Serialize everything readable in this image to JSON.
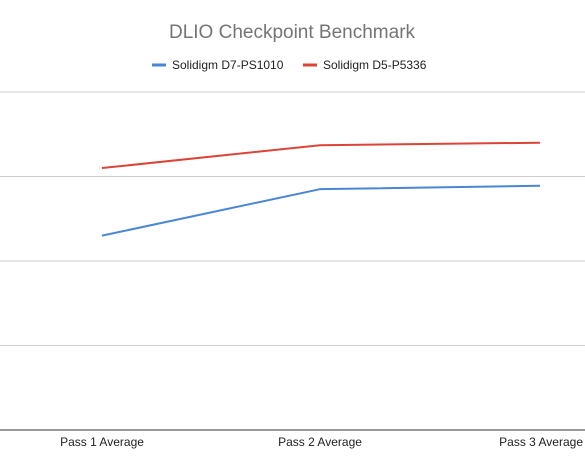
{
  "chart_data": {
    "type": "line",
    "title": "DLIO Checkpoint Benchmark",
    "categories": [
      "Pass 1 Average",
      "Pass 2 Average",
      "Pass 3 Average"
    ],
    "series": [
      {
        "name": "Solidigm D7-PS1010",
        "color": "#4a86d6",
        "values": [
          2.3,
          2.85,
          2.89
        ]
      },
      {
        "name": "Solidigm D5-P5336",
        "color": "#db4437",
        "values": [
          3.1,
          3.37,
          3.4
        ]
      }
    ],
    "ylim": [
      0,
      4
    ],
    "y_gridlines": [
      1,
      2,
      3,
      4
    ],
    "y_tick_labels_visible": false,
    "grid": true,
    "legend_position": "top"
  }
}
